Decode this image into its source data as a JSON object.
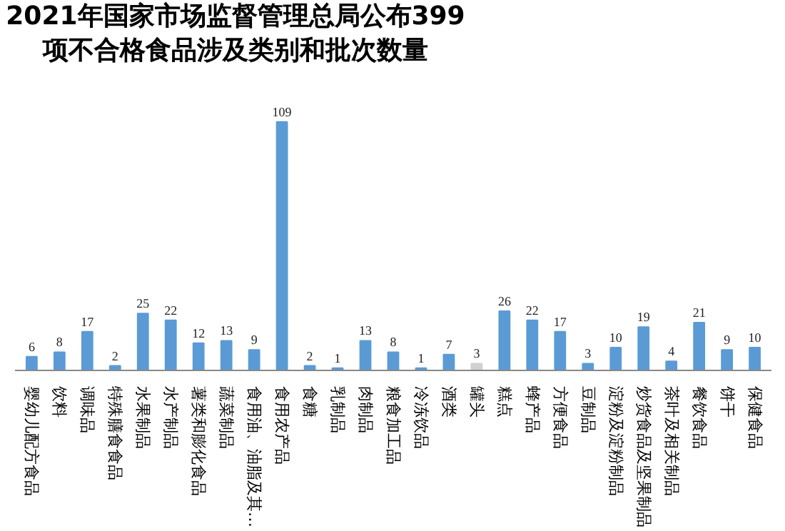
{
  "chart_data": {
    "type": "bar",
    "title": "2021年国家市场监督管理总局公布399项不合格食品涉及类别和批次数量",
    "categories": [
      "婴幼儿配方食品",
      "饮料",
      "调味品",
      "特殊膳食食品",
      "水果制品",
      "水产制品",
      "薯类和膨化食品",
      "蔬菜制品",
      "食用油、油脂及其…",
      "食用农产品",
      "食糖",
      "乳制品",
      "肉制品",
      "粮食加工品",
      "冷冻饮品",
      "酒类",
      "罐头",
      "糕点",
      "蜂产品",
      "方便食品",
      "豆制品",
      "淀粉及淀粉制品",
      "炒货食品及坚果制品",
      "茶叶及相关制品",
      "餐饮食品",
      "饼干",
      "保健食品"
    ],
    "values": [
      6,
      8,
      17,
      2,
      25,
      22,
      12,
      13,
      9,
      109,
      2,
      1,
      13,
      8,
      1,
      7,
      3,
      26,
      22,
      17,
      3,
      10,
      19,
      4,
      21,
      9,
      10
    ],
    "colors": [
      "#5b9bd5",
      "#5b9bd5",
      "#5b9bd5",
      "#5b9bd5",
      "#5b9bd5",
      "#5b9bd5",
      "#5b9bd5",
      "#5b9bd5",
      "#5b9bd5",
      "#5b9bd5",
      "#5b9bd5",
      "#5b9bd5",
      "#5b9bd5",
      "#5b9bd5",
      "#5b9bd5",
      "#5b9bd5",
      "#d0d0d0",
      "#5b9bd5",
      "#5b9bd5",
      "#5b9bd5",
      "#5b9bd5",
      "#5b9bd5",
      "#5b9bd5",
      "#5b9bd5",
      "#5b9bd5",
      "#5b9bd5",
      "#5b9bd5"
    ],
    "data_labels": true,
    "grid": false
  }
}
